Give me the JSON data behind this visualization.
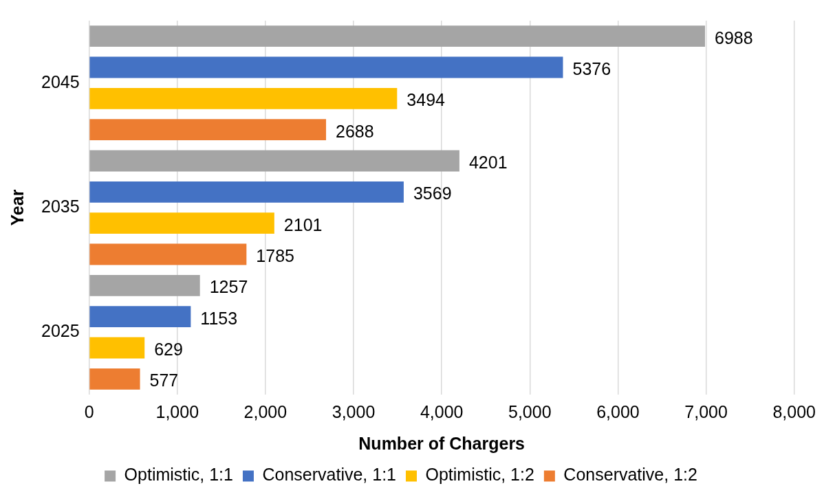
{
  "chart_data": {
    "type": "bar",
    "orientation": "horizontal",
    "xlabel": "Number of Chargers",
    "ylabel": "Year",
    "categories": [
      "2045",
      "2035",
      "2025"
    ],
    "series": [
      {
        "name": "Optimistic, 1:1",
        "color": "#a5a5a5",
        "values": [
          6988,
          4201,
          1257
        ]
      },
      {
        "name": "Conservative, 1:1",
        "color": "#4472c4",
        "values": [
          5376,
          3569,
          1153
        ]
      },
      {
        "name": "Optimistic, 1:2",
        "color": "#ffc000",
        "values": [
          3494,
          2101,
          629
        ]
      },
      {
        "name": "Conservative, 1:2",
        "color": "#ed7d31",
        "values": [
          2688,
          1785,
          577
        ]
      }
    ],
    "xlim": [
      0,
      8000
    ],
    "xticks": [
      0,
      {
        "value": 1000,
        "label": "1,000"
      },
      {
        "value": 2000,
        "label": "2,000"
      },
      {
        "value": 3000,
        "label": "3,000"
      },
      {
        "value": 4000,
        "label": "4,000"
      },
      {
        "value": 5000,
        "label": "5,000"
      },
      {
        "value": 6000,
        "label": "6,000"
      },
      {
        "value": 7000,
        "label": "7,000"
      },
      {
        "value": 8000,
        "label": "8,000"
      }
    ],
    "grid": "x",
    "legend": "bottom",
    "data_labels": true
  }
}
